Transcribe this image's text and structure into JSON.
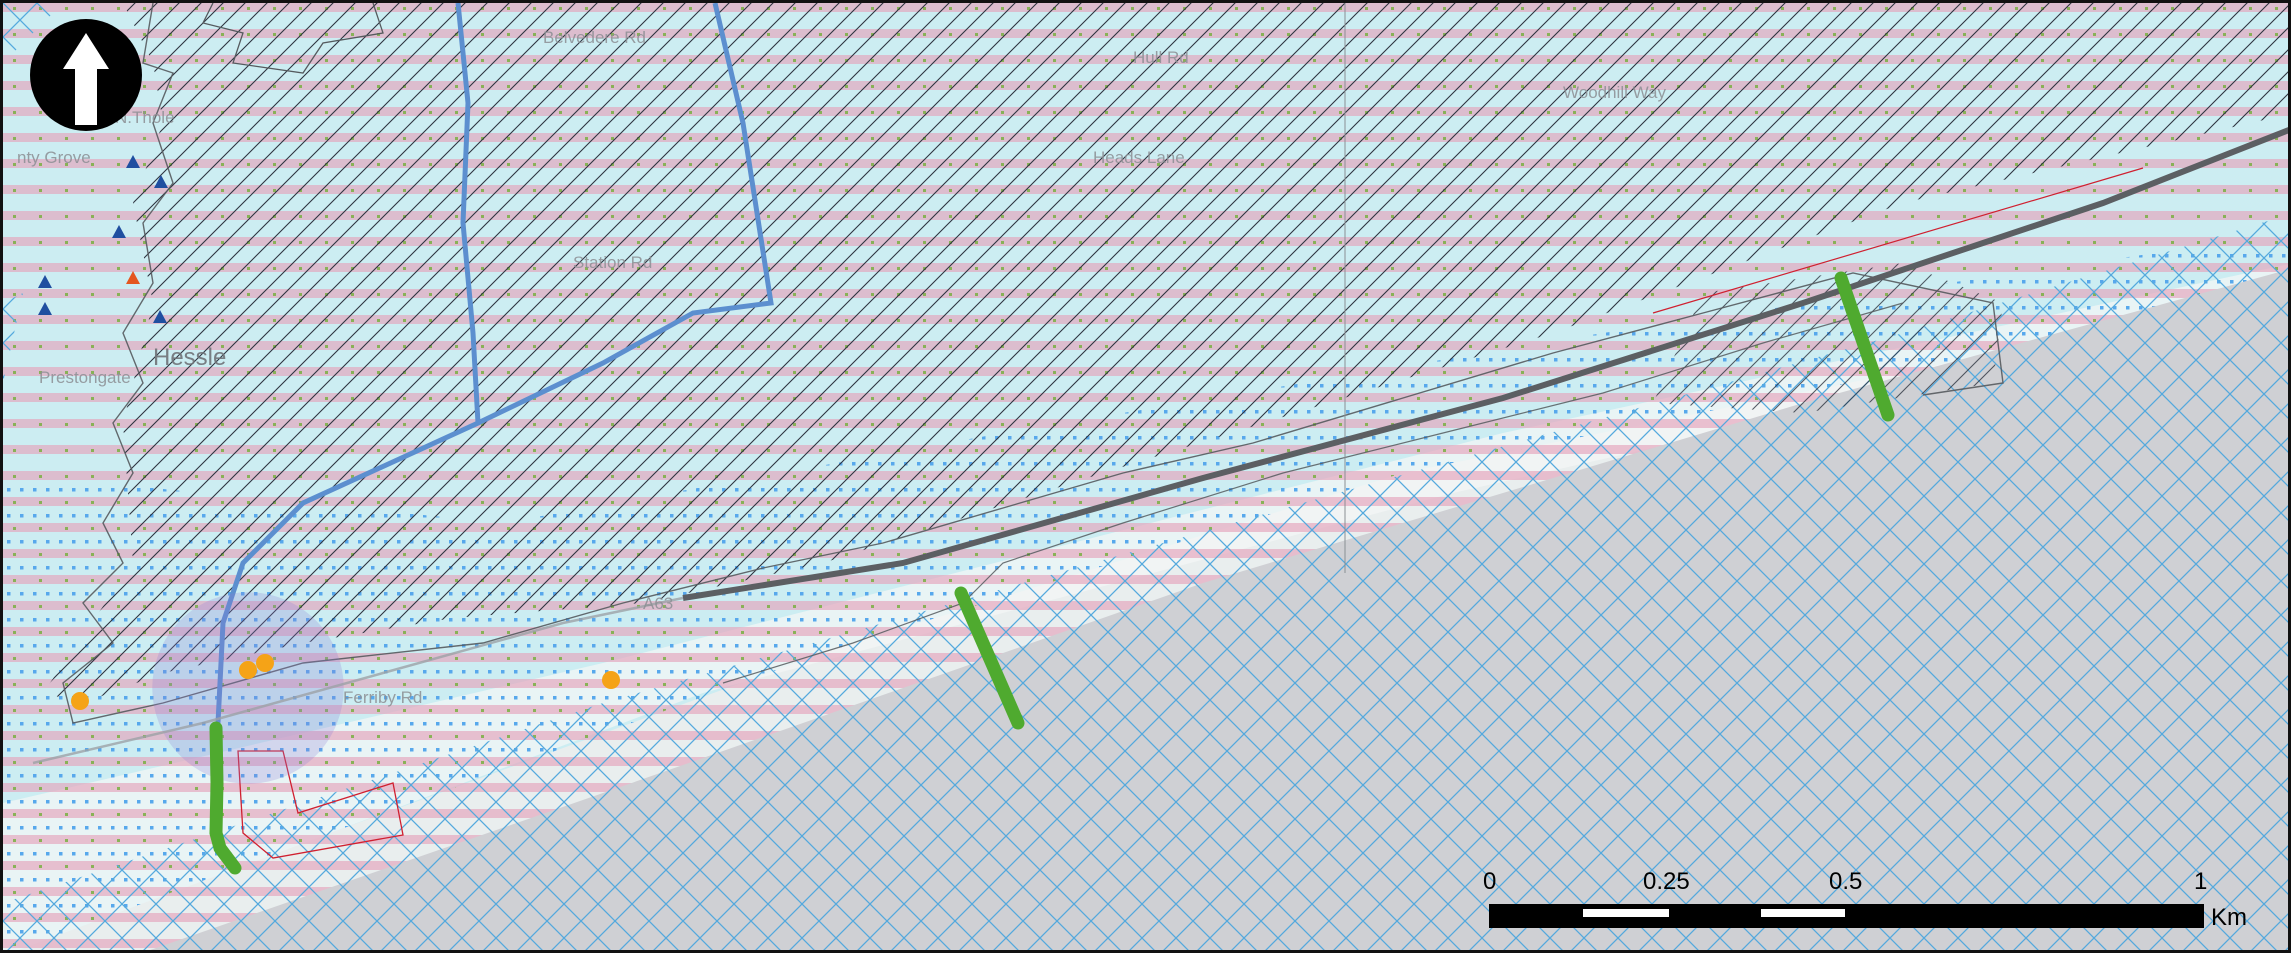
{
  "map": {
    "north_arrow_icon": "north-arrow-icon",
    "scale_bar": {
      "ticks": [
        "0",
        "0.25",
        "0.5",
        "1"
      ],
      "unit": "Km"
    },
    "place_labels": {
      "town": "Hessle",
      "road_a63": "A63",
      "preston_gate": "Prestongate",
      "belvedere_rd": "Belvedere Rd",
      "jenny_grove": "nty Grove",
      "station_rd": "Station Rd",
      "woodhill_way": "Woodhill Way",
      "ferriby_rd": "Ferriby Rd",
      "heads_lane": "Heads Lane",
      "northolme": "N.Thole",
      "hull_rd": "Hull Rd"
    },
    "colors": {
      "stripe_pink": "#e7a9bf",
      "hatch_blue": "#4fa7d8",
      "estuary_grey": "#cfd0d4",
      "boundary_blue": "#5c8fcf",
      "green_marker": "#4faa2f",
      "orange_marker": "#f5a317",
      "blue_triangle": "#1f4fa0",
      "orange_triangle": "#e4571f"
    }
  }
}
